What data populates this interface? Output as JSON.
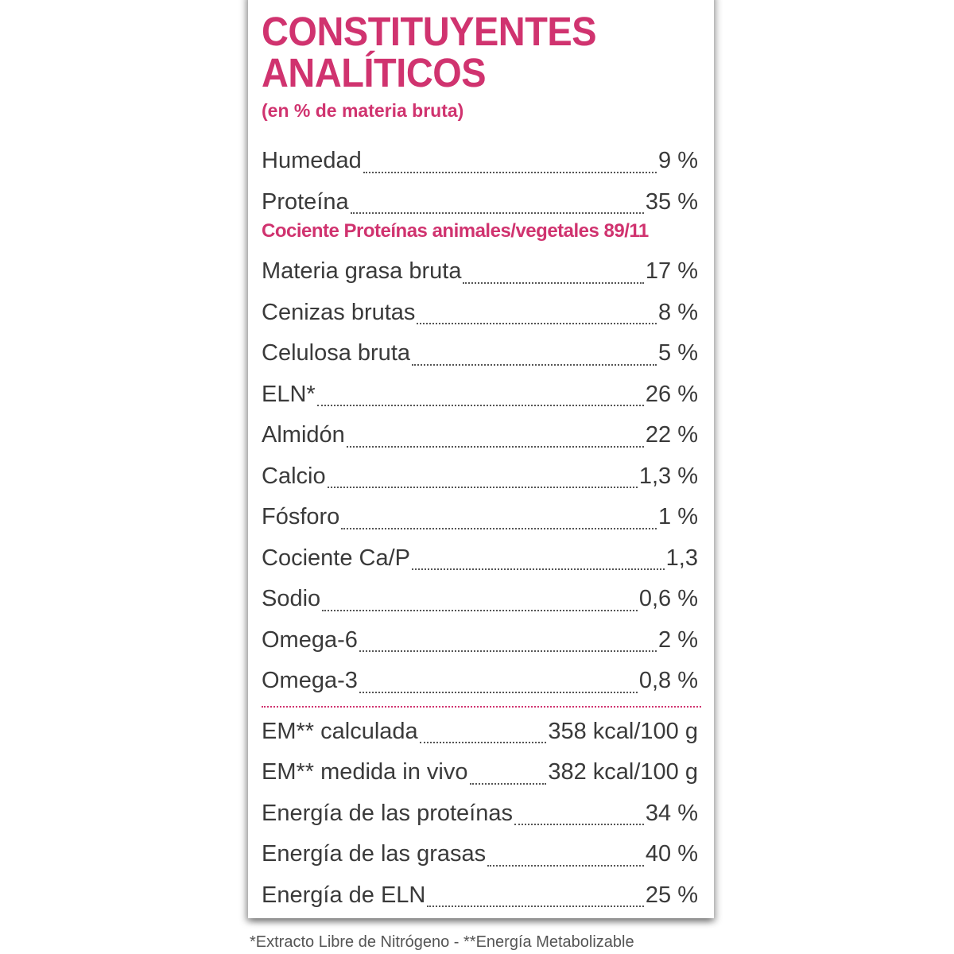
{
  "colors": {
    "accent": "#d0336f",
    "text": "#3a3a3a"
  },
  "header": {
    "title_line1": "CONSTITUYENTES",
    "title_line2": "ANALÍTICOS",
    "subtitle": "(en % de materia bruta)"
  },
  "rows_top": [
    {
      "label": "Humedad",
      "value": "9 %"
    },
    {
      "label": "Proteína",
      "value": "35 %"
    }
  ],
  "protein_ratio_note": "Cociente Proteínas animales/vegetales 89/11",
  "rows_mid": [
    {
      "label": "Materia grasa bruta",
      "value": "17 %"
    },
    {
      "label": "Cenizas brutas",
      "value": "8 %"
    },
    {
      "label": "Celulosa bruta",
      "value": "5 %"
    },
    {
      "label": "ELN*",
      "value": "26 %"
    },
    {
      "label": "Almidón",
      "value": "22 %"
    },
    {
      "label": "Calcio",
      "value": "1,3 %"
    },
    {
      "label": "Fósforo",
      "value": "1 %"
    },
    {
      "label": "Cociente Ca/P",
      "value": "1,3"
    },
    {
      "label": "Sodio",
      "value": "0,6 %"
    },
    {
      "label": "Omega-6",
      "value": "2 %"
    },
    {
      "label": "Omega-3",
      "value": "0,8 %"
    }
  ],
  "rows_energy": [
    {
      "label": "EM** calculada",
      "value": "358 kcal/100 g"
    },
    {
      "label": "EM** medida in vivo",
      "value": "382 kcal/100 g"
    },
    {
      "label": "Energía de las proteínas",
      "value": "34 %"
    },
    {
      "label": "Energía de las grasas",
      "value": "40 %"
    },
    {
      "label": "Energía de ELN",
      "value": "25 %"
    }
  ],
  "footer": "*Extracto Libre de Nitrógeno - **Energía Metabolizable"
}
